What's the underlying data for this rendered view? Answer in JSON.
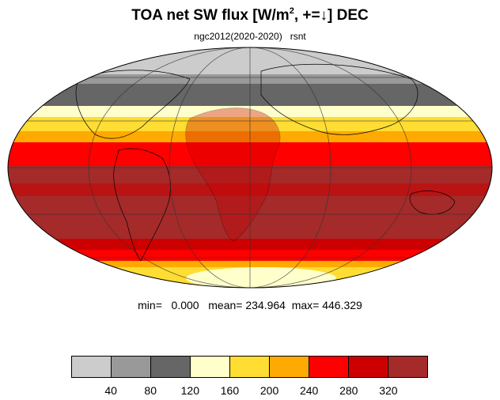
{
  "title": {
    "prefix": "TOA net SW flux [W/m",
    "sup": "2",
    "suffix": ", +=↓]  DEC"
  },
  "subtitle": "ngc2012(2020-2020)   rsnt",
  "stats": "min=   0.000   mean= 234.964  max= 446.329",
  "colorbar": {
    "colors": [
      "#cccccc",
      "#999999",
      "#666666",
      "#ffffcc",
      "#ffdd33",
      "#ffaa00",
      "#ff0000",
      "#cc0000",
      "#a52a2a"
    ],
    "labels": [
      "40",
      "80",
      "120",
      "160",
      "200",
      "240",
      "280",
      "320"
    ]
  }
}
